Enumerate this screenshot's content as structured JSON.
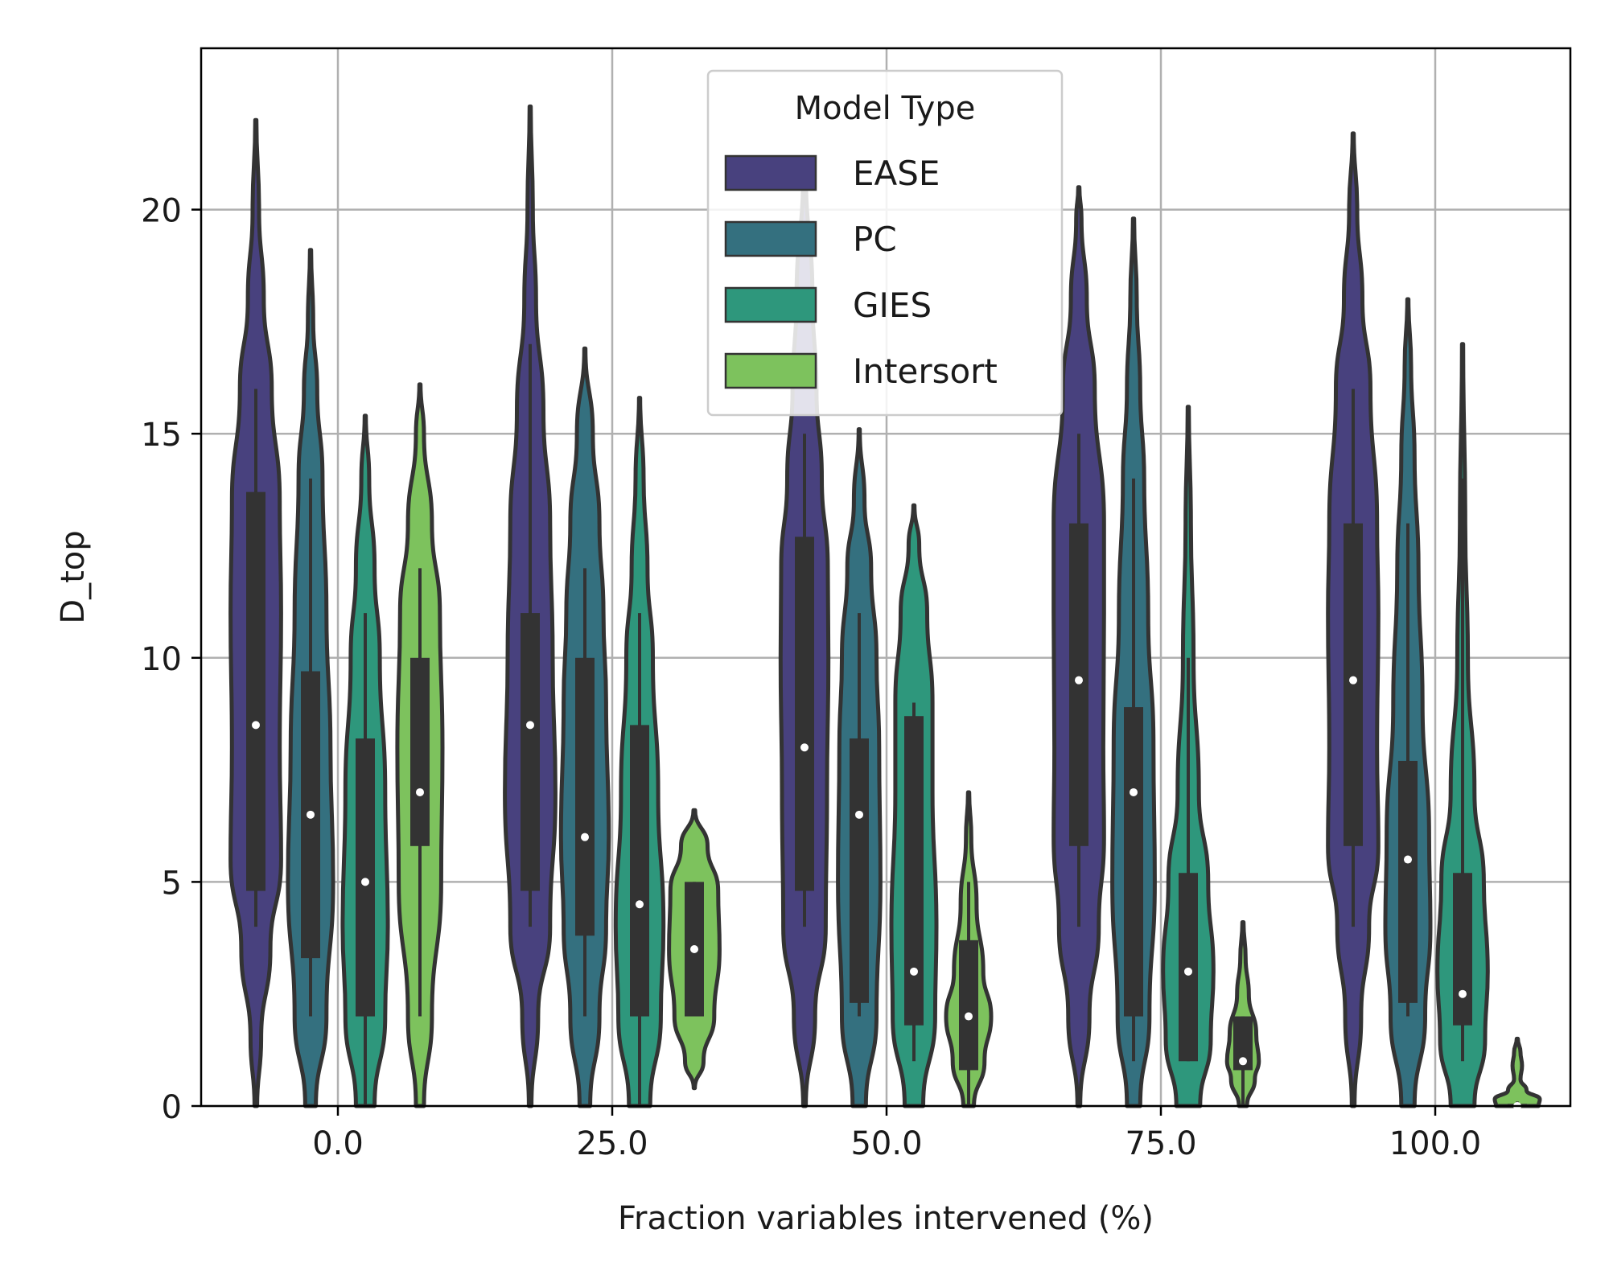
{
  "chart_data": {
    "type": "violin",
    "title": "",
    "xlabel": "Fraction variables intervened (%)",
    "ylabel": "D_top",
    "ylim": [
      0,
      23.6
    ],
    "yticks": [
      "0",
      "5",
      "10",
      "15",
      "20"
    ],
    "categories": [
      "0.0",
      "25.0",
      "50.0",
      "75.0",
      "100.0"
    ],
    "grid": true,
    "legend": {
      "title": "Model Type",
      "placement": "top-center"
    },
    "series": [
      {
        "name": "EASE",
        "color": "#48417e",
        "groups": [
          {
            "max": 22.0,
            "q1": 4.8,
            "median": 8.5,
            "q3": 13.7,
            "whisker_low": 4.0,
            "whisker_high": 16.0,
            "shape": [
              [
                0,
                0.05
              ],
              [
                1.5,
                0.2
              ],
              [
                3.5,
                0.55
              ],
              [
                5.5,
                0.95
              ],
              [
                8,
                0.9
              ],
              [
                11,
                0.95
              ],
              [
                13.5,
                0.9
              ],
              [
                16,
                0.6
              ],
              [
                18,
                0.3
              ],
              [
                20,
                0.12
              ],
              [
                22,
                0.02
              ]
            ]
          },
          {
            "max": 22.3,
            "q1": 4.8,
            "median": 8.5,
            "q3": 11.0,
            "whisker_low": 4.0,
            "whisker_high": 17.0,
            "shape": [
              [
                0,
                0.05
              ],
              [
                2,
                0.3
              ],
              [
                4,
                0.75
              ],
              [
                7,
                0.95
              ],
              [
                10,
                0.85
              ],
              [
                13,
                0.75
              ],
              [
                15.5,
                0.5
              ],
              [
                18,
                0.22
              ],
              [
                20,
                0.1
              ],
              [
                22.3,
                0.02
              ]
            ]
          },
          {
            "max": 20.9,
            "q1": 4.8,
            "median": 8.0,
            "q3": 12.7,
            "whisker_low": 4.0,
            "whisker_high": 15.0,
            "shape": [
              [
                0,
                0.05
              ],
              [
                2,
                0.4
              ],
              [
                4,
                0.8
              ],
              [
                7,
                0.85
              ],
              [
                10,
                0.9
              ],
              [
                12,
                0.88
              ],
              [
                14,
                0.65
              ],
              [
                16,
                0.45
              ],
              [
                18,
                0.3
              ],
              [
                20.9,
                0.05
              ]
            ]
          },
          {
            "max": 20.5,
            "q1": 5.8,
            "median": 9.5,
            "q3": 13.0,
            "whisker_low": 4.0,
            "whisker_high": 15.0,
            "shape": [
              [
                0,
                0.05
              ],
              [
                2,
                0.4
              ],
              [
                4,
                0.75
              ],
              [
                6,
                0.95
              ],
              [
                8,
                0.92
              ],
              [
                11,
                0.95
              ],
              [
                13,
                0.95
              ],
              [
                16,
                0.6
              ],
              [
                18,
                0.3
              ],
              [
                19.8,
                0.1
              ],
              [
                20.5,
                0.02
              ]
            ]
          },
          {
            "max": 21.7,
            "q1": 5.8,
            "median": 9.5,
            "q3": 13.0,
            "whisker_low": 4.0,
            "whisker_high": 16.0,
            "shape": [
              [
                0,
                0.05
              ],
              [
                2,
                0.3
              ],
              [
                4,
                0.6
              ],
              [
                5.8,
                0.95
              ],
              [
                8,
                0.9
              ],
              [
                11,
                0.95
              ],
              [
                13,
                0.9
              ],
              [
                16,
                0.65
              ],
              [
                18,
                0.35
              ],
              [
                20,
                0.15
              ],
              [
                21.7,
                0.02
              ]
            ]
          }
        ]
      },
      {
        "name": "PC",
        "color": "#34707f",
        "groups": [
          {
            "max": 19.1,
            "q1": 3.3,
            "median": 6.5,
            "q3": 9.7,
            "whisker_low": 2.0,
            "whisker_high": 14.0,
            "shape": [
              [
                0,
                0.2
              ],
              [
                2,
                0.6
              ],
              [
                5,
                0.85
              ],
              [
                8,
                0.75
              ],
              [
                11,
                0.6
              ],
              [
                14,
                0.45
              ],
              [
                16,
                0.25
              ],
              [
                17.5,
                0.1
              ],
              [
                19.1,
                0.02
              ]
            ]
          },
          {
            "max": 16.9,
            "q1": 3.8,
            "median": 6.0,
            "q3": 10.0,
            "whisker_low": 2.0,
            "whisker_high": 12.0,
            "shape": [
              [
                0,
                0.2
              ],
              [
                2,
                0.55
              ],
              [
                4,
                0.8
              ],
              [
                6,
                0.9
              ],
              [
                9,
                0.8
              ],
              [
                11,
                0.7
              ],
              [
                13,
                0.55
              ],
              [
                15,
                0.3
              ],
              [
                16.9,
                0.02
              ]
            ]
          },
          {
            "max": 15.1,
            "q1": 2.3,
            "median": 6.5,
            "q3": 8.2,
            "whisker_low": 2.0,
            "whisker_high": 11.0,
            "shape": [
              [
                0,
                0.25
              ],
              [
                2,
                0.65
              ],
              [
                5,
                0.8
              ],
              [
                8,
                0.75
              ],
              [
                10,
                0.65
              ],
              [
                12,
                0.45
              ],
              [
                13.5,
                0.2
              ],
              [
                15.1,
                0.02
              ]
            ]
          },
          {
            "max": 19.8,
            "q1": 2.0,
            "median": 7.0,
            "q3": 8.9,
            "whisker_low": 1.0,
            "whisker_high": 14.0,
            "shape": [
              [
                0,
                0.25
              ],
              [
                2,
                0.6
              ],
              [
                5,
                0.8
              ],
              [
                8,
                0.75
              ],
              [
                11,
                0.55
              ],
              [
                14,
                0.4
              ],
              [
                16,
                0.25
              ],
              [
                18,
                0.12
              ],
              [
                19.8,
                0.02
              ]
            ]
          },
          {
            "max": 18.0,
            "q1": 2.3,
            "median": 5.5,
            "q3": 7.7,
            "whisker_low": 2.0,
            "whisker_high": 13.0,
            "shape": [
              [
                0,
                0.25
              ],
              [
                2,
                0.65
              ],
              [
                4,
                0.85
              ],
              [
                6,
                0.8
              ],
              [
                9,
                0.55
              ],
              [
                12,
                0.4
              ],
              [
                14.5,
                0.25
              ],
              [
                16.5,
                0.12
              ],
              [
                18,
                0.02
              ]
            ]
          }
        ]
      },
      {
        "name": "GIES",
        "color": "#2e977c",
        "groups": [
          {
            "max": 15.4,
            "q1": 2.0,
            "median": 5.0,
            "q3": 8.2,
            "whisker_low": 0.0,
            "whisker_high": 11.0,
            "shape": [
              [
                0,
                0.35
              ],
              [
                2,
                0.75
              ],
              [
                4,
                0.85
              ],
              [
                7,
                0.75
              ],
              [
                10,
                0.55
              ],
              [
                12,
                0.35
              ],
              [
                14,
                0.15
              ],
              [
                15.4,
                0.02
              ]
            ]
          },
          {
            "max": 15.8,
            "q1": 2.0,
            "median": 4.5,
            "q3": 8.5,
            "whisker_low": 0.0,
            "whisker_high": 11.0,
            "shape": [
              [
                0,
                0.4
              ],
              [
                2,
                0.8
              ],
              [
                4,
                0.9
              ],
              [
                7,
                0.7
              ],
              [
                10,
                0.5
              ],
              [
                12,
                0.3
              ],
              [
                14,
                0.15
              ],
              [
                15.8,
                0.02
              ]
            ]
          },
          {
            "max": 13.4,
            "q1": 1.8,
            "median": 3.0,
            "q3": 8.7,
            "whisker_low": 1.0,
            "whisker_high": 9.0,
            "shape": [
              [
                0,
                0.35
              ],
              [
                2,
                0.8
              ],
              [
                4,
                0.85
              ],
              [
                7,
                0.7
              ],
              [
                9,
                0.7
              ],
              [
                11,
                0.5
              ],
              [
                12.5,
                0.2
              ],
              [
                13.4,
                0.02
              ]
            ]
          },
          {
            "max": 15.6,
            "q1": 1.0,
            "median": 3.0,
            "q3": 5.2,
            "whisker_low": 1.0,
            "whisker_high": 10.0,
            "shape": [
              [
                0,
                0.45
              ],
              [
                1.5,
                0.85
              ],
              [
                3,
                0.95
              ],
              [
                5,
                0.75
              ],
              [
                7,
                0.4
              ],
              [
                10,
                0.2
              ],
              [
                13,
                0.1
              ],
              [
                15.6,
                0.02
              ]
            ]
          },
          {
            "max": 17.0,
            "q1": 1.8,
            "median": 2.5,
            "q3": 5.2,
            "whisker_low": 1.0,
            "whisker_high": 14.0,
            "shape": [
              [
                0,
                0.45
              ],
              [
                1.5,
                0.85
              ],
              [
                3,
                0.95
              ],
              [
                5,
                0.8
              ],
              [
                7,
                0.45
              ],
              [
                10,
                0.2
              ],
              [
                13,
                0.1
              ],
              [
                17,
                0.02
              ]
            ]
          }
        ]
      },
      {
        "name": "Intersort",
        "color": "#7dc25d",
        "groups": [
          {
            "max": 16.1,
            "q1": 5.8,
            "median": 7.0,
            "q3": 10.0,
            "whisker_low": 2.0,
            "whisker_high": 12.0,
            "shape": [
              [
                0,
                0.15
              ],
              [
                2,
                0.45
              ],
              [
                5,
                0.8
              ],
              [
                8,
                0.85
              ],
              [
                11,
                0.75
              ],
              [
                13,
                0.45
              ],
              [
                15,
                0.15
              ],
              [
                16.1,
                0.02
              ]
            ]
          },
          {
            "max": 6.6,
            "q1": 2.0,
            "median": 3.5,
            "q3": 5.0,
            "whisker_low": 2.0,
            "whisker_high": 5.0,
            "shape": [
              [
                0.4,
                0.02
              ],
              [
                1,
                0.35
              ],
              [
                2,
                0.75
              ],
              [
                3.5,
                0.95
              ],
              [
                4.8,
                0.9
              ],
              [
                5.8,
                0.5
              ],
              [
                6.6,
                0.03
              ]
            ]
          },
          {
            "max": 7.0,
            "q1": 0.8,
            "median": 2.0,
            "q3": 3.7,
            "whisker_low": 0.0,
            "whisker_high": 5.0,
            "shape": [
              [
                0,
                0.2
              ],
              [
                1,
                0.6
              ],
              [
                2,
                0.85
              ],
              [
                3,
                0.55
              ],
              [
                4.5,
                0.3
              ],
              [
                6,
                0.1
              ],
              [
                7,
                0.02
              ]
            ]
          },
          {
            "max": 4.1,
            "q1": 0.8,
            "median": 1.0,
            "q3": 2.0,
            "whisker_low": 0.0,
            "whisker_high": 2.0,
            "shape": [
              [
                0,
                0.15
              ],
              [
                0.6,
                0.45
              ],
              [
                1,
                0.6
              ],
              [
                1.6,
                0.5
              ],
              [
                2.5,
                0.22
              ],
              [
                3.3,
                0.1
              ],
              [
                4.1,
                0.02
              ]
            ]
          },
          {
            "max": 1.5,
            "q1": 0.0,
            "median": 0.0,
            "q3": 0.05,
            "whisker_low": 0.0,
            "whisker_high": 0.1,
            "shape": [
              [
                0,
                0.8
              ],
              [
                0.15,
                0.85
              ],
              [
                0.35,
                0.35
              ],
              [
                0.6,
                0.12
              ],
              [
                0.9,
                0.18
              ],
              [
                1.2,
                0.12
              ],
              [
                1.5,
                0.02
              ]
            ]
          }
        ]
      }
    ]
  },
  "colors": {
    "outline": "#333333",
    "grid": "#b0b0b0",
    "box": "#333333",
    "median_dot": "#ffffff"
  }
}
